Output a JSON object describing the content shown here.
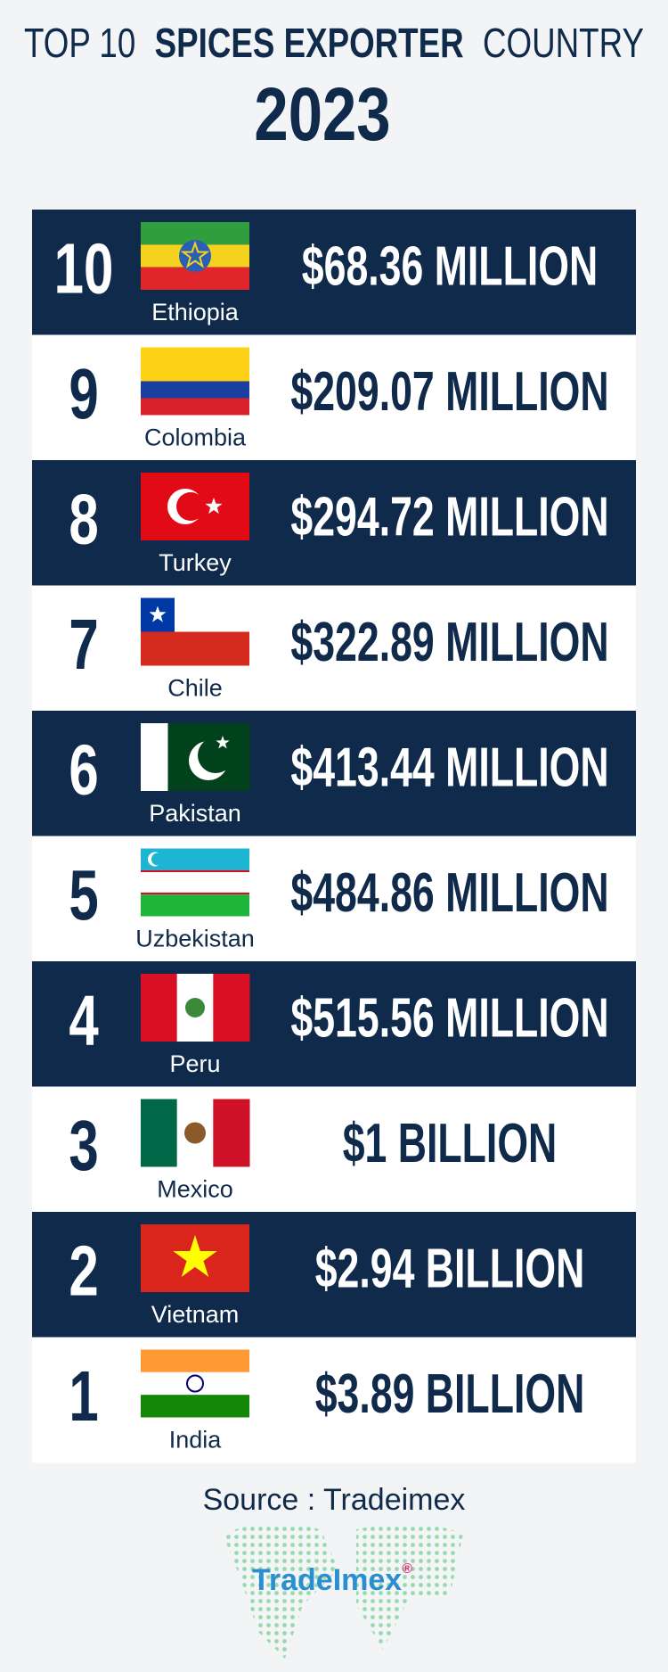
{
  "header": {
    "title_parts": [
      "TOP 10",
      "SPICES EXPORTER",
      "COUNTRY"
    ],
    "year": "2023"
  },
  "rows": [
    {
      "rank": "10",
      "country": "Ethiopia",
      "value": "$68.36 MILLION"
    },
    {
      "rank": "9",
      "country": "Colombia",
      "value": "$209.07 MILLION"
    },
    {
      "rank": "8",
      "country": "Turkey",
      "value": "$294.72 MILLION"
    },
    {
      "rank": "7",
      "country": "Chile",
      "value": "$322.89 MILLION"
    },
    {
      "rank": "6",
      "country": "Pakistan",
      "value": "$413.44 MILLION"
    },
    {
      "rank": "5",
      "country": "Uzbekistan",
      "value": "$484.86 MILLION"
    },
    {
      "rank": "4",
      "country": "Peru",
      "value": "$515.56 MILLION"
    },
    {
      "rank": "3",
      "country": "Mexico",
      "value": "$1  BILLION"
    },
    {
      "rank": "2",
      "country": "Vietnam",
      "value": "$2.94 BILLION"
    },
    {
      "rank": "1",
      "country": "India",
      "value": "$3.89 BILLION"
    }
  ],
  "source": "Source : Tradeimex",
  "logo": {
    "name": "TradeImex",
    "mark": "®"
  }
}
